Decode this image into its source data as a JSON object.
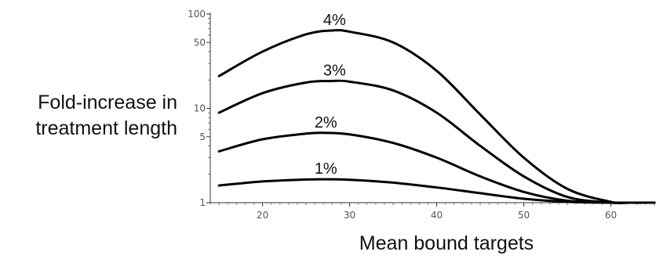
{
  "chart_data": {
    "type": "line",
    "title": "",
    "xlabel": "Mean bound targets",
    "ylabel_lines": [
      "Fold-increase in",
      "treatment length"
    ],
    "xscale": "linear",
    "yscale": "log",
    "xlim": [
      14,
      65
    ],
    "ylim": [
      1,
      100
    ],
    "xticks": [
      20,
      30,
      40,
      50,
      60
    ],
    "yticks": [
      1,
      5,
      10,
      50,
      100
    ],
    "grid": false,
    "legend": "none (labels placed above each curve)",
    "line_color": "#000000",
    "series": [
      {
        "name": "1%",
        "x": [
          15,
          20,
          25,
          27,
          30,
          35,
          40,
          45,
          50,
          55,
          60,
          62,
          65
        ],
        "y": [
          1.52,
          1.68,
          1.76,
          1.77,
          1.75,
          1.63,
          1.45,
          1.26,
          1.1,
          1.02,
          1.0,
          1.0,
          1.0
        ]
      },
      {
        "name": "2%",
        "x": [
          15,
          20,
          25,
          27,
          30,
          35,
          40,
          45,
          50,
          55,
          60,
          62,
          65
        ],
        "y": [
          3.5,
          4.7,
          5.4,
          5.5,
          5.3,
          4.3,
          3.0,
          1.9,
          1.3,
          1.05,
          1.0,
          1.0,
          1.0
        ]
      },
      {
        "name": "3%",
        "x": [
          15,
          20,
          25,
          28,
          30,
          35,
          40,
          45,
          50,
          55,
          60,
          62,
          65
        ],
        "y": [
          9.0,
          14.5,
          18.8,
          19.5,
          19.2,
          15.5,
          9.0,
          4.0,
          1.9,
          1.15,
          1.0,
          1.0,
          1.0
        ]
      },
      {
        "name": "4%",
        "x": [
          15,
          20,
          25,
          28,
          30,
          35,
          40,
          45,
          50,
          55,
          60,
          62,
          65
        ],
        "y": [
          22,
          40,
          61,
          67,
          65,
          50,
          25,
          8.6,
          3.0,
          1.4,
          1.02,
          1.0,
          1.0
        ]
      }
    ]
  }
}
